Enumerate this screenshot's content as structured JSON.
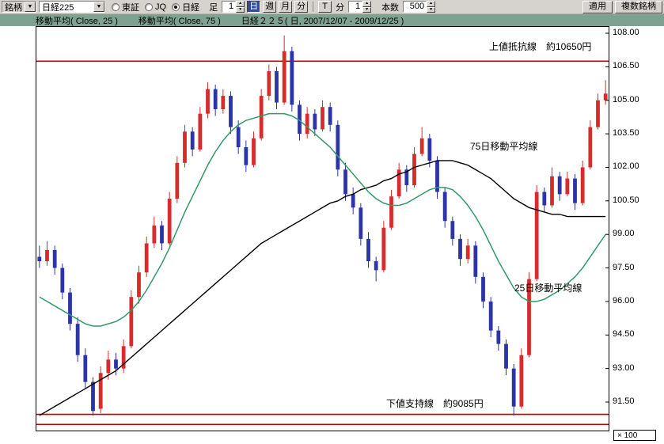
{
  "toolbar": {
    "symbol_label": "銘柄",
    "symbol_value": "日経225",
    "radios": [
      {
        "label": "東証",
        "selected": false
      },
      {
        "label": "JQ",
        "selected": false
      },
      {
        "label": "日経",
        "selected": true
      }
    ],
    "ashi_label": "足",
    "ashi_count": "1",
    "period_buttons": [
      {
        "label": "日",
        "selected": true
      },
      {
        "label": "週",
        "selected": false
      },
      {
        "label": "月",
        "selected": false
      },
      {
        "label": "分",
        "selected": false
      }
    ],
    "tick_label": "T",
    "minute_label": "分",
    "minute_count": "1",
    "bars_label": "本数",
    "bars_count": "500",
    "apply_button": "適用",
    "multi_symbol_button": "複数銘柄"
  },
  "header": {
    "ma25_label": "移動平均( Close, 25 )",
    "ma75_label": "移動平均( Close, 75 )",
    "series_label": "日経２２５( 日, 2007/12/07 - 2009/12/25 )"
  },
  "chart_data": {
    "type": "candlestick",
    "title": "日経２２５( 日, 2007/12/07 - 2009/12/25 )",
    "note_unit": "prices in units of 100 yen",
    "y_axis_ticks": [
      108.0,
      106.5,
      105.0,
      103.5,
      102.0,
      100.5,
      99.0,
      97.5,
      96.0,
      94.5,
      93.0,
      91.5
    ],
    "y_multiplier_label": "× 100",
    "resistance": {
      "price": 106.75,
      "label": "上値抵抗線　約10650円"
    },
    "support": {
      "price_upper": 90.95,
      "price_lower": 90.5,
      "label": "下値支持線　約9085円"
    },
    "annotations": {
      "ma75_label": "75日移動平均線",
      "ma25_label": "25日移動平均線"
    },
    "colors": {
      "up": "#d62c2c",
      "down": "#2b35a8",
      "ma25": "#339966",
      "ma75": "#000000",
      "level": "#c00000"
    },
    "candles": [
      [
        98.0,
        98.5,
        97.5,
        97.8
      ],
      [
        97.8,
        98.7,
        97.6,
        98.3
      ],
      [
        98.3,
        98.5,
        97.2,
        97.5
      ],
      [
        97.5,
        97.7,
        96.1,
        96.4
      ],
      [
        96.4,
        96.6,
        94.7,
        95.0
      ],
      [
        95.0,
        95.3,
        93.3,
        93.6
      ],
      [
        93.6,
        93.9,
        92.1,
        92.4
      ],
      [
        92.4,
        92.6,
        90.9,
        91.1
      ],
      [
        91.2,
        93.1,
        91.0,
        92.8
      ],
      [
        92.8,
        93.8,
        92.5,
        93.4
      ],
      [
        93.4,
        93.7,
        92.7,
        93.0
      ],
      [
        93.0,
        94.3,
        92.8,
        94.0
      ],
      [
        94.0,
        96.5,
        93.9,
        96.2
      ],
      [
        96.2,
        97.6,
        95.9,
        97.3
      ],
      [
        97.3,
        98.9,
        97.1,
        98.6
      ],
      [
        98.6,
        99.8,
        98.4,
        99.4
      ],
      [
        99.4,
        99.6,
        98.3,
        98.6
      ],
      [
        98.6,
        100.9,
        98.5,
        100.6
      ],
      [
        100.6,
        102.5,
        100.4,
        102.2
      ],
      [
        102.2,
        103.9,
        102.0,
        103.6
      ],
      [
        103.6,
        103.8,
        102.5,
        102.8
      ],
      [
        102.8,
        104.7,
        102.7,
        104.4
      ],
      [
        104.4,
        105.8,
        104.2,
        105.5
      ],
      [
        105.5,
        105.7,
        104.3,
        104.6
      ],
      [
        104.6,
        105.5,
        104.4,
        105.2
      ],
      [
        105.2,
        105.4,
        103.5,
        103.8
      ],
      [
        103.8,
        104.1,
        102.6,
        102.9
      ],
      [
        102.9,
        103.2,
        101.8,
        102.1
      ],
      [
        102.1,
        103.6,
        102.0,
        103.3
      ],
      [
        103.3,
        105.5,
        103.2,
        105.2
      ],
      [
        105.2,
        106.6,
        105.0,
        106.3
      ],
      [
        106.3,
        106.5,
        104.6,
        104.9
      ],
      [
        104.9,
        107.9,
        104.8,
        107.2
      ],
      [
        107.2,
        107.4,
        104.5,
        104.8
      ],
      [
        104.8,
        105.0,
        103.2,
        103.5
      ],
      [
        103.5,
        104.7,
        103.3,
        104.4
      ],
      [
        104.4,
        104.6,
        103.4,
        103.7
      ],
      [
        103.7,
        105.0,
        103.6,
        104.7
      ],
      [
        104.7,
        104.9,
        103.6,
        103.9
      ],
      [
        103.9,
        104.1,
        101.6,
        101.9
      ],
      [
        101.9,
        102.2,
        100.5,
        100.8
      ],
      [
        100.8,
        101.1,
        99.9,
        100.2
      ],
      [
        100.2,
        100.4,
        98.5,
        98.8
      ],
      [
        98.8,
        99.1,
        97.5,
        97.8
      ],
      [
        97.8,
        98.0,
        96.9,
        97.4
      ],
      [
        97.4,
        99.6,
        97.3,
        99.3
      ],
      [
        99.3,
        101.0,
        99.2,
        100.7
      ],
      [
        100.7,
        102.2,
        100.6,
        101.9
      ],
      [
        101.9,
        102.1,
        100.9,
        101.2
      ],
      [
        101.2,
        102.9,
        101.1,
        102.6
      ],
      [
        102.6,
        103.8,
        102.5,
        103.3
      ],
      [
        103.3,
        103.5,
        102.0,
        102.3
      ],
      [
        102.3,
        102.5,
        100.6,
        100.9
      ],
      [
        100.9,
        101.1,
        99.3,
        99.6
      ],
      [
        99.6,
        99.8,
        98.5,
        98.8
      ],
      [
        98.8,
        99.0,
        97.6,
        97.9
      ],
      [
        97.9,
        98.8,
        97.7,
        98.5
      ],
      [
        98.5,
        98.7,
        96.8,
        97.1
      ],
      [
        97.1,
        97.3,
        95.7,
        96.0
      ],
      [
        96.0,
        96.2,
        94.4,
        94.7
      ],
      [
        94.7,
        94.9,
        93.8,
        94.1
      ],
      [
        94.1,
        94.3,
        92.7,
        93.0
      ],
      [
        93.0,
        93.2,
        90.9,
        91.3
      ],
      [
        91.3,
        93.9,
        91.2,
        93.6
      ],
      [
        93.6,
        97.3,
        93.5,
        97.0
      ],
      [
        97.0,
        101.2,
        96.9,
        100.9
      ],
      [
        100.9,
        101.1,
        100.0,
        100.3
      ],
      [
        100.3,
        102.0,
        100.2,
        101.6
      ],
      [
        101.6,
        101.8,
        100.5,
        100.8
      ],
      [
        100.8,
        101.8,
        100.7,
        101.5
      ],
      [
        101.5,
        101.7,
        100.1,
        100.4
      ],
      [
        100.4,
        102.3,
        100.3,
        102.0
      ],
      [
        102.0,
        104.1,
        101.9,
        103.8
      ],
      [
        103.8,
        105.3,
        103.7,
        105.0
      ],
      [
        105.0,
        105.9,
        104.8,
        105.3
      ]
    ],
    "ma25": [
      96.2,
      96.0,
      95.8,
      95.6,
      95.4,
      95.2,
      95.0,
      94.9,
      94.9,
      95.0,
      95.1,
      95.3,
      95.6,
      96.0,
      96.5,
      97.1,
      97.7,
      98.4,
      99.2,
      100.0,
      100.7,
      101.4,
      102.1,
      102.7,
      103.2,
      103.6,
      103.9,
      104.1,
      104.2,
      104.3,
      104.4,
      104.4,
      104.4,
      104.3,
      104.1,
      103.8,
      103.5,
      103.2,
      102.9,
      102.5,
      102.1,
      101.7,
      101.3,
      100.9,
      100.6,
      100.4,
      100.3,
      100.3,
      100.4,
      100.6,
      100.8,
      101.0,
      101.1,
      101.1,
      101.0,
      100.7,
      100.3,
      99.8,
      99.2,
      98.5,
      97.8,
      97.2,
      96.6,
      96.2,
      96.0,
      96.0,
      96.1,
      96.3,
      96.5,
      96.8,
      97.1,
      97.5,
      98.0,
      98.5,
      99.0
    ],
    "ma75": [
      90.9,
      91.1,
      91.3,
      91.5,
      91.7,
      91.9,
      92.1,
      92.3,
      92.5,
      92.7,
      92.9,
      93.2,
      93.5,
      93.8,
      94.1,
      94.4,
      94.7,
      95.0,
      95.3,
      95.6,
      95.9,
      96.2,
      96.5,
      96.8,
      97.1,
      97.4,
      97.7,
      98.0,
      98.3,
      98.6,
      98.8,
      99.0,
      99.2,
      99.4,
      99.6,
      99.8,
      100.0,
      100.2,
      100.4,
      100.5,
      100.7,
      100.8,
      101.0,
      101.1,
      101.2,
      101.4,
      101.5,
      101.7,
      101.8,
      102.0,
      102.1,
      102.2,
      102.3,
      102.3,
      102.3,
      102.2,
      102.1,
      101.9,
      101.7,
      101.5,
      101.2,
      100.9,
      100.6,
      100.4,
      100.2,
      100.1,
      100.0,
      99.9,
      99.9,
      99.8,
      99.8,
      99.8,
      99.8,
      99.8,
      99.8
    ]
  }
}
